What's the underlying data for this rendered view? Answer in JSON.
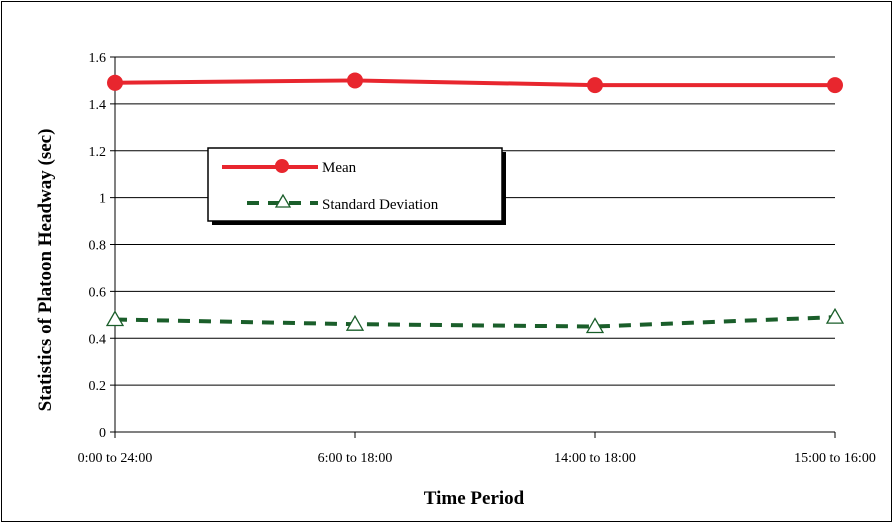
{
  "chart_data": {
    "type": "line",
    "categories": [
      "0:00 to 24:00",
      "6:00 to 18:00",
      "14:00 to 18:00",
      "15:00 to 16:00"
    ],
    "series": [
      {
        "name": "Mean",
        "values": [
          1.49,
          1.5,
          1.48,
          1.48
        ],
        "color": "#e8262e",
        "style": "solid",
        "marker": "circle"
      },
      {
        "name": "Standard Deviation",
        "values": [
          0.48,
          0.46,
          0.45,
          0.49
        ],
        "color": "#1a5e2a",
        "style": "dashed",
        "marker": "triangle-open"
      }
    ],
    "xlabel": "Time Period",
    "ylabel": "Statistics of Platoon Headway (sec)",
    "ylim": [
      0,
      1.6
    ],
    "yticks": [
      "0",
      "0.2",
      "0.4",
      "0.6",
      "0.8",
      "1",
      "1.2",
      "1.4",
      "1.6"
    ],
    "grid": true,
    "legend_position": "upper-left-center"
  }
}
